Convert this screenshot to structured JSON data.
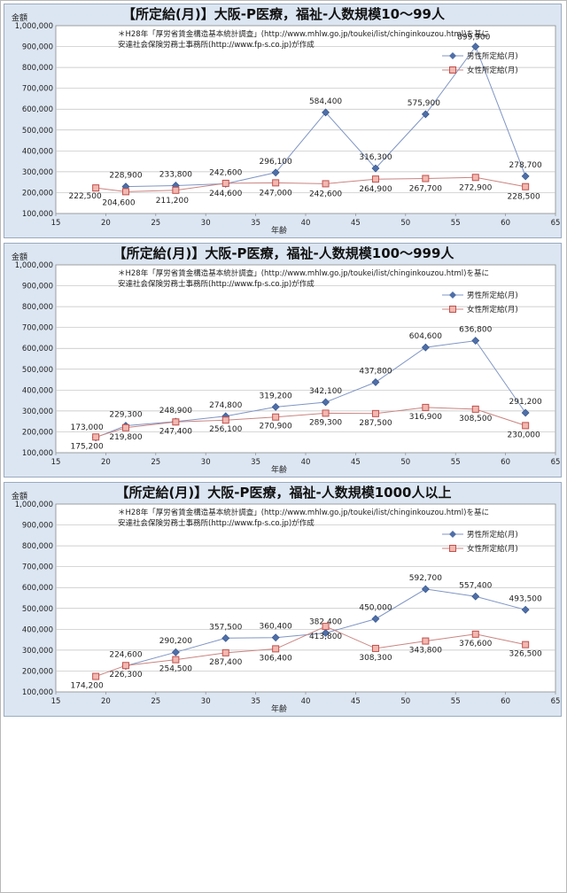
{
  "colors": {
    "male": "#4f6fa8",
    "female": "#c0504d",
    "female_fill": "#f2b8b0",
    "panel_bg": "#dce6f2",
    "plot_bg": "#ffffff"
  },
  "chart_data": [
    {
      "type": "line",
      "title": "【所定給(月)】大阪-P医療，福祉-人数規模10～99人",
      "note_lines": [
        "＊H28年「厚労省賃金構造基本統計調査」(http://www.mhlw.go.jp/toukei/list/chinginkouzou.html)を基に",
        "安達社会保険労務士事務所(http://www.fp-s.co.jp)が作成"
      ],
      "ylabel": "金額",
      "xlabel": "年齢",
      "xlim": [
        15,
        65
      ],
      "ylim": [
        100000,
        1000000
      ],
      "xticks": [
        "15",
        "20",
        "25",
        "30",
        "35",
        "40",
        "45",
        "50",
        "55",
        "60",
        "65"
      ],
      "yticks": [
        "100,000",
        "200,000",
        "300,000",
        "400,000",
        "500,000",
        "600,000",
        "700,000",
        "800,000",
        "900,000",
        "1,000,000"
      ],
      "legend_position": "top-right",
      "series": [
        {
          "name": "男性所定給(月)",
          "marker": "diamond",
          "x": [
            22,
            27,
            32,
            37,
            42,
            47,
            52,
            57,
            62
          ],
          "y": [
            228900,
            233800,
            242600,
            296100,
            584400,
            316300,
            575900,
            899900,
            278700
          ],
          "labels": [
            "228,900",
            "233,800",
            "242,600",
            "296,100",
            "584,400",
            "316,300",
            "575,900",
            "899,900",
            "278,700"
          ]
        },
        {
          "name": "女性所定給(月)",
          "marker": "square",
          "x": [
            19,
            22,
            27,
            32,
            37,
            42,
            47,
            52,
            57,
            62
          ],
          "y": [
            222500,
            204600,
            211200,
            244600,
            247000,
            242600,
            264900,
            267700,
            272900,
            228500
          ],
          "labels": [
            "222,500",
            "204,600",
            "211,200",
            "244,600",
            "247,000",
            "242,600",
            "264,900",
            "267,700",
            "272,900",
            "228,500"
          ]
        }
      ]
    },
    {
      "type": "line",
      "title": "【所定給(月)】大阪-P医療，福祉-人数規模100～999人",
      "note_lines": [
        "＊H28年「厚労省賃金構造基本統計調査」(http://www.mhlw.go.jp/toukei/list/chinginkouzou.html)を基に",
        "安達社会保険労務士事務所(http://www.fp-s.co.jp)が作成"
      ],
      "ylabel": "金額",
      "xlabel": "年齢",
      "xlim": [
        15,
        65
      ],
      "ylim": [
        100000,
        1000000
      ],
      "xticks": [
        "15",
        "20",
        "25",
        "30",
        "35",
        "40",
        "45",
        "50",
        "55",
        "60",
        "65"
      ],
      "yticks": [
        "100,000",
        "200,000",
        "300,000",
        "400,000",
        "500,000",
        "600,000",
        "700,000",
        "800,000",
        "900,000",
        "1,000,000"
      ],
      "legend_position": "top-right",
      "series": [
        {
          "name": "男性所定給(月)",
          "marker": "diamond",
          "x": [
            19,
            22,
            27,
            32,
            37,
            42,
            47,
            52,
            57,
            62
          ],
          "y": [
            173000,
            229300,
            248900,
            274800,
            319200,
            342100,
            437800,
            604600,
            636800,
            291200
          ],
          "labels": [
            "173,000",
            "229,300",
            "248,900",
            "274,800",
            "319,200",
            "342,100",
            "437,800",
            "604,600",
            "636,800",
            "291,200"
          ]
        },
        {
          "name": "女性所定給(月)",
          "marker": "square",
          "x": [
            19,
            22,
            27,
            32,
            37,
            42,
            47,
            52,
            57,
            62
          ],
          "y": [
            175200,
            219800,
            247400,
            256100,
            270900,
            289300,
            287500,
            316900,
            308500,
            230000
          ],
          "labels": [
            "175,200",
            "219,800",
            "247,400",
            "256,100",
            "270,900",
            "289,300",
            "287,500",
            "316,900",
            "308,500",
            "230,000"
          ]
        }
      ]
    },
    {
      "type": "line",
      "title": "【所定給(月)】大阪-P医療，福祉-人数規模1000人以上",
      "note_lines": [
        "＊H28年「厚労省賃金構造基本統計調査」(http://www.mhlw.go.jp/toukei/list/chinginkouzou.html)を基に",
        "安達社会保険労務士事務所(http://www.fp-s.co.jp)が作成"
      ],
      "ylabel": "金額",
      "xlabel": "年齢",
      "xlim": [
        15,
        65
      ],
      "ylim": [
        100000,
        1000000
      ],
      "xticks": [
        "15",
        "20",
        "25",
        "30",
        "35",
        "40",
        "45",
        "50",
        "55",
        "60",
        "65"
      ],
      "yticks": [
        "100,000",
        "200,000",
        "300,000",
        "400,000",
        "500,000",
        "600,000",
        "700,000",
        "800,000",
        "900,000",
        "1,000,000"
      ],
      "legend_position": "top-right",
      "series": [
        {
          "name": "男性所定給(月)",
          "marker": "diamond",
          "x": [
            22,
            27,
            32,
            37,
            42,
            47,
            52,
            57,
            62
          ],
          "y": [
            224600,
            290200,
            357500,
            360400,
            382400,
            450000,
            592700,
            557400,
            493500
          ],
          "labels": [
            "224,600",
            "290,200",
            "357,500",
            "360,400",
            "382,400",
            "450,000",
            "592,700",
            "557,400",
            "493,500"
          ]
        },
        {
          "name": "女性所定給(月)",
          "marker": "square",
          "x": [
            19,
            22,
            27,
            32,
            37,
            42,
            47,
            52,
            57,
            62
          ],
          "y": [
            174200,
            226300,
            254500,
            287400,
            306400,
            413800,
            308300,
            343800,
            376600,
            326500
          ],
          "labels": [
            "174,200",
            "226,300",
            "254,500",
            "287,400",
            "306,400",
            "413,800",
            "308,300",
            "343,800",
            "376,600",
            "326,500"
          ]
        }
      ]
    }
  ]
}
